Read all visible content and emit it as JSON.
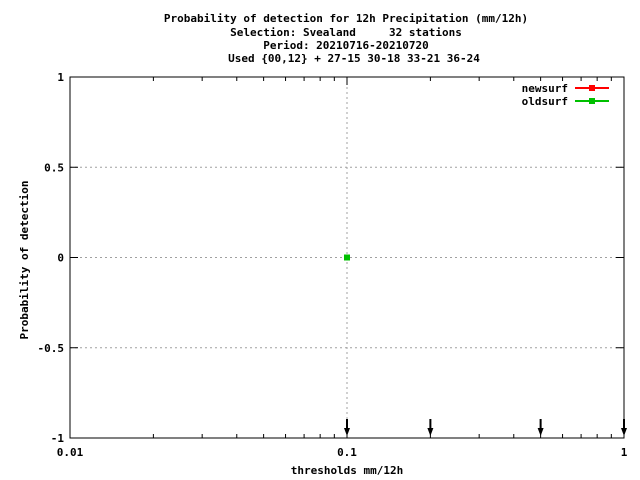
{
  "chart_data": {
    "type": "scatter",
    "title_lines": [
      "Probability of detection  for 12h Precipitation (mm/12h)",
      "Selection: Svealand     32 stations",
      "Period: 20210716-20210720",
      "Used {00,12} + 27-15 30-18 33-21 36-24"
    ],
    "xlabel": "thresholds mm/12h",
    "ylabel": "Probability of detection",
    "x_scale": "log",
    "xlim": [
      0.01,
      1
    ],
    "ylim": [
      -1,
      1
    ],
    "x_ticks": [
      {
        "value": 0.01,
        "label": "0.01"
      },
      {
        "value": 0.1,
        "label": "0.1"
      },
      {
        "value": 1,
        "label": "1"
      }
    ],
    "y_ticks": [
      {
        "value": 1,
        "label": "1"
      },
      {
        "value": 0.5,
        "label": "0.5"
      },
      {
        "value": 0,
        "label": "0"
      },
      {
        "value": -0.5,
        "label": "-0.5"
      },
      {
        "value": -1,
        "label": "-1"
      }
    ],
    "grid": true,
    "legend_position": "top-right",
    "series": [
      {
        "name": "newsurf",
        "color": "#ff0000",
        "points": [
          {
            "x": 0.1,
            "y": 0
          }
        ]
      },
      {
        "name": "oldsurf",
        "color": "#00c000",
        "points": [
          {
            "x": 0.1,
            "y": 0
          }
        ]
      }
    ],
    "threshold_arrows": [
      0.1,
      0.2,
      0.5,
      1
    ]
  }
}
